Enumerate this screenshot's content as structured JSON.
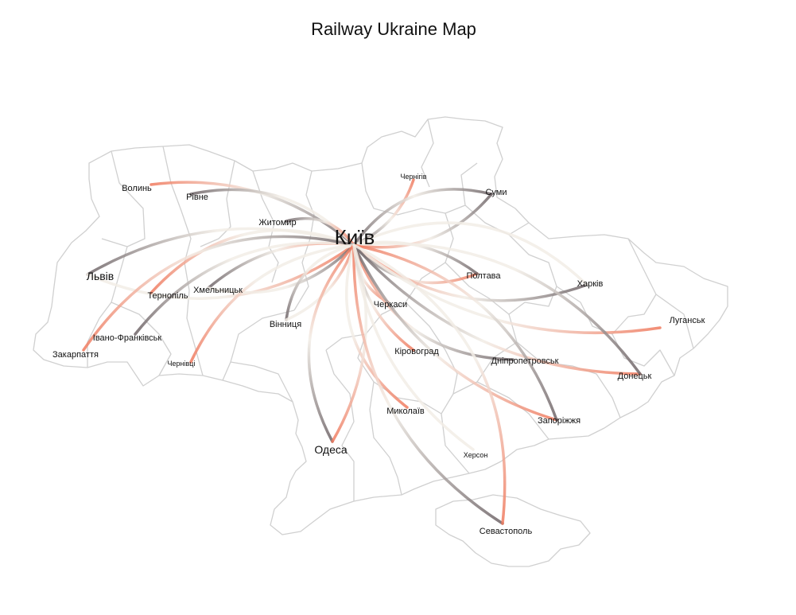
{
  "title": "Railway Ukraine Map",
  "colors": {
    "dark": "#6d6366",
    "light": "#f2ede6",
    "accent": "#f07a5e",
    "outline": "#d0d0d0"
  },
  "hub": "Київ",
  "cities": [
    {
      "name": "Київ",
      "size": "large"
    },
    {
      "name": "Волинь",
      "size": "small"
    },
    {
      "name": "Рівне",
      "size": "small"
    },
    {
      "name": "Житомир",
      "size": "small"
    },
    {
      "name": "Чернігів",
      "size": "tiny"
    },
    {
      "name": "Суми",
      "size": "small"
    },
    {
      "name": "Львів",
      "size": "medium"
    },
    {
      "name": "Тернопіль",
      "size": "small"
    },
    {
      "name": "Хмельницьк",
      "size": "small"
    },
    {
      "name": "Полтава",
      "size": "small"
    },
    {
      "name": "Харків",
      "size": "small"
    },
    {
      "name": "Черкаси",
      "size": "small"
    },
    {
      "name": "Луганськ",
      "size": "small"
    },
    {
      "name": "Вінниця",
      "size": "small"
    },
    {
      "name": "Івано-Франківськ",
      "size": "small"
    },
    {
      "name": "Закарпаття",
      "size": "small"
    },
    {
      "name": "Кіровоград",
      "size": "small"
    },
    {
      "name": "Чернівці",
      "size": "tiny"
    },
    {
      "name": "Дніпропетровськ",
      "size": "small"
    },
    {
      "name": "Донецьк",
      "size": "small"
    },
    {
      "name": "Миколаїв",
      "size": "small"
    },
    {
      "name": "Запоріжжя",
      "size": "small"
    },
    {
      "name": "Одеса",
      "size": "medium"
    },
    {
      "name": "Херсон",
      "size": "tiny"
    },
    {
      "name": "Севастополь",
      "size": "small"
    }
  ],
  "routes": [
    {
      "to": "Волинь",
      "from_color": "dark",
      "to_color": "accent"
    },
    {
      "to": "Рівне",
      "from_color": "light",
      "to_color": "dark"
    },
    {
      "to": "Житомир",
      "from_color": "accent",
      "to_color": "dark"
    },
    {
      "to": "Чернігів",
      "from_color": "dark",
      "to_color": "accent"
    },
    {
      "to": "Суми",
      "from_color": "accent",
      "to_color": "dark"
    },
    {
      "to": "Суми",
      "from_color": "dark",
      "to_color": "dark"
    },
    {
      "to": "Львів",
      "from_color": "light",
      "to_color": "dark"
    },
    {
      "to": "Львів",
      "from_color": "accent",
      "to_color": "light"
    },
    {
      "to": "Тернопіль",
      "from_color": "light",
      "to_color": "accent"
    },
    {
      "to": "Хмельницьк",
      "from_color": "accent",
      "to_color": "dark"
    },
    {
      "to": "Хмельницьк",
      "from_color": "dark",
      "to_color": "light"
    },
    {
      "to": "Полтава",
      "from_color": "dark",
      "to_color": "accent"
    },
    {
      "to": "Полтава",
      "from_color": "light",
      "to_color": "dark"
    },
    {
      "to": "Харків",
      "from_color": "accent",
      "to_color": "dark"
    },
    {
      "to": "Харків",
      "from_color": "light",
      "to_color": "light"
    },
    {
      "to": "Луганськ",
      "from_color": "light",
      "to_color": "accent"
    },
    {
      "to": "Черкаси",
      "from_color": "dark",
      "to_color": "accent"
    },
    {
      "to": "Вінниця",
      "from_color": "light",
      "to_color": "dark"
    },
    {
      "to": "Вінниця",
      "from_color": "accent",
      "to_color": "light"
    },
    {
      "to": "Івано-Франківськ",
      "from_color": "light",
      "to_color": "dark"
    },
    {
      "to": "Закарпаття",
      "from_color": "dark",
      "to_color": "accent"
    },
    {
      "to": "Кіровоград",
      "from_color": "dark",
      "to_color": "accent"
    },
    {
      "to": "Чернівці",
      "from_color": "light",
      "to_color": "accent"
    },
    {
      "to": "Дніпропетровськ",
      "from_color": "accent",
      "to_color": "dark"
    },
    {
      "to": "Донецьк",
      "from_color": "dark",
      "to_color": "accent"
    },
    {
      "to": "Донецьк",
      "from_color": "light",
      "to_color": "dark"
    },
    {
      "to": "Миколаїв",
      "from_color": "light",
      "to_color": "accent"
    },
    {
      "to": "Запоріжжя",
      "from_color": "dark",
      "to_color": "accent"
    },
    {
      "to": "Запоріжжя",
      "from_color": "accent",
      "to_color": "dark"
    },
    {
      "to": "Одеса",
      "from_color": "accent",
      "to_color": "dark"
    },
    {
      "to": "Одеса",
      "from_color": "light",
      "to_color": "accent"
    },
    {
      "to": "Севастополь",
      "from_color": "accent",
      "to_color": "dark"
    },
    {
      "to": "Севастополь",
      "from_color": "light",
      "to_color": "accent"
    },
    {
      "to": "Херсон",
      "from_color": "light",
      "to_color": "light"
    }
  ]
}
